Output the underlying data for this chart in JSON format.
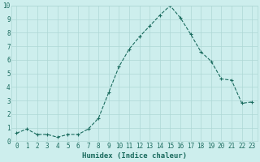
{
  "x": [
    0,
    1,
    2,
    3,
    4,
    5,
    6,
    7,
    8,
    9,
    10,
    11,
    12,
    13,
    14,
    15,
    16,
    17,
    18,
    19,
    20,
    21,
    22,
    23
  ],
  "y": [
    0.6,
    0.9,
    0.5,
    0.5,
    0.3,
    0.5,
    0.5,
    0.9,
    1.7,
    3.6,
    5.5,
    6.8,
    7.7,
    8.5,
    9.3,
    10.0,
    9.1,
    7.9,
    6.6,
    5.9,
    4.6,
    4.5,
    2.8,
    2.9
  ],
  "line_color": "#1a6b5e",
  "marker": "+",
  "marker_size": 3,
  "marker_linewidth": 0.8,
  "line_width": 0.8,
  "bg_color": "#cdeeed",
  "grid_color": "#aed8d5",
  "xlabel": "Humidex (Indice chaleur)",
  "ylabel": "",
  "xlim": [
    -0.5,
    23.5
  ],
  "ylim": [
    0,
    10
  ],
  "yticks": [
    0,
    1,
    2,
    3,
    4,
    5,
    6,
    7,
    8,
    9,
    10
  ],
  "xticks": [
    0,
    1,
    2,
    3,
    4,
    5,
    6,
    7,
    8,
    9,
    10,
    11,
    12,
    13,
    14,
    15,
    16,
    17,
    18,
    19,
    20,
    21,
    22,
    23
  ],
  "tick_color": "#1a6b5e",
  "xlabel_fontsize": 6.5,
  "tick_fontsize": 5.5,
  "linestyle": "--"
}
